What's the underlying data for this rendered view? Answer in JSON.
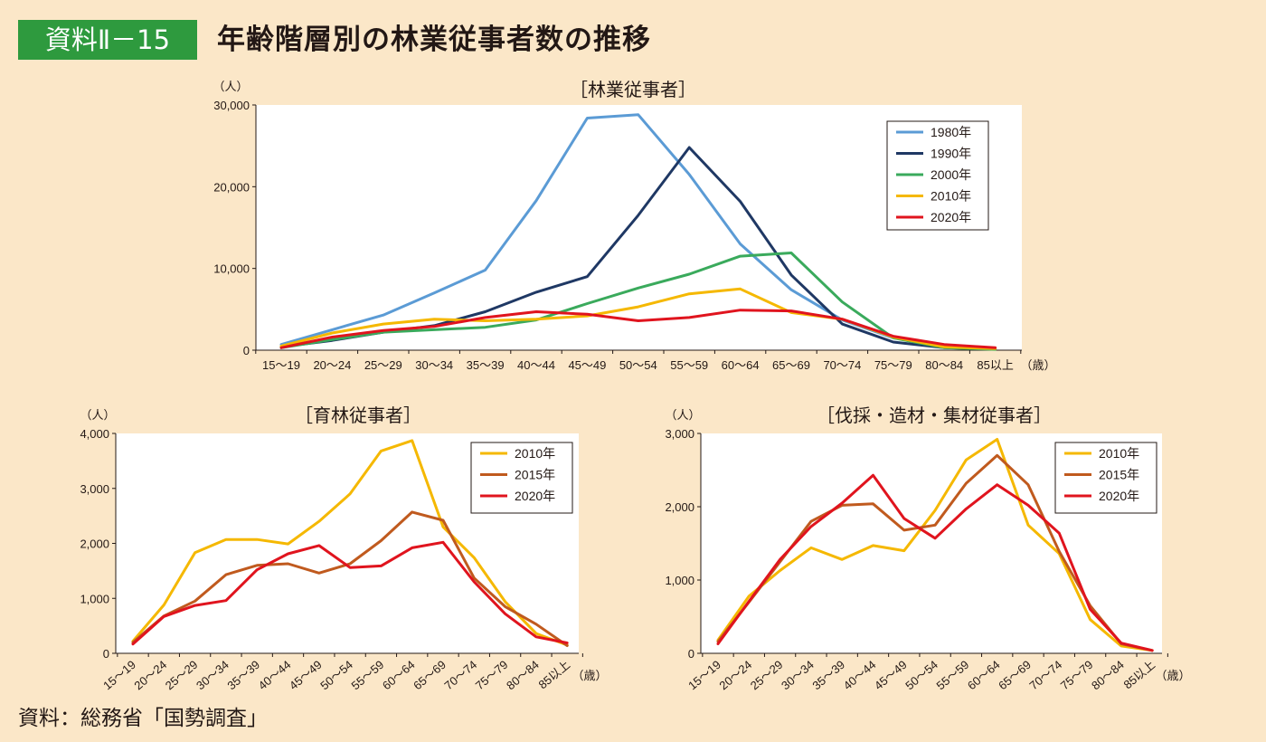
{
  "header": {
    "badge": "資料Ⅱ－15",
    "title": "年齢階層別の林業従事者数の推移"
  },
  "source": "資料：総務省「国勢調査」",
  "colors": {
    "1980年": "#5b9bd5",
    "1990年": "#1f3864",
    "2000年": "#3aaa5c",
    "2010年": "#f5b800",
    "2015年": "#c05a1e",
    "2020年": "#e0141e"
  },
  "chart_data": [
    {
      "type": "line",
      "title": "［林業従事者］",
      "ylabel": "（人）",
      "xlabel_suffix": "（歳）",
      "categories": [
        "15～19",
        "20～24",
        "25～29",
        "30～34",
        "35～39",
        "40～44",
        "45～49",
        "50～54",
        "55～59",
        "60～64",
        "65～69",
        "70～74",
        "75～79",
        "80～84",
        "85以上"
      ],
      "ylim": [
        0,
        30000
      ],
      "yticks": [
        0,
        10000,
        20000,
        30000
      ],
      "ytick_labels": [
        "0",
        "10,000",
        "20,000",
        "30,000"
      ],
      "grid": false,
      "legend_position": "top-right",
      "series": [
        {
          "name": "1980年",
          "values": [
            700,
            2500,
            4300,
            7000,
            9800,
            18300,
            28400,
            28800,
            21500,
            13000,
            7400,
            3700,
            1500,
            500,
            200
          ]
        },
        {
          "name": "1990年",
          "values": [
            400,
            1200,
            2200,
            3000,
            4700,
            7100,
            9000,
            16500,
            24800,
            18200,
            9200,
            3200,
            1000,
            300,
            150
          ]
        },
        {
          "name": "2000年",
          "values": [
            300,
            1300,
            2200,
            2500,
            2800,
            3700,
            5700,
            7600,
            9300,
            11500,
            11900,
            5900,
            1500,
            300,
            100
          ]
        },
        {
          "name": "2010年",
          "values": [
            500,
            2100,
            3200,
            3800,
            3600,
            3800,
            4200,
            5300,
            6900,
            7500,
            4600,
            3800,
            1600,
            400,
            200
          ]
        },
        {
          "name": "2020年",
          "values": [
            300,
            1600,
            2400,
            2900,
            4000,
            4700,
            4400,
            3600,
            4000,
            4900,
            4800,
            3800,
            1700,
            700,
            300
          ]
        }
      ]
    },
    {
      "type": "line",
      "title": "［育林従事者］",
      "ylabel": "（人）",
      "xlabel_suffix": "（歳）",
      "categories": [
        "15～19",
        "20～24",
        "25～29",
        "30～34",
        "35～39",
        "40～44",
        "45～49",
        "50～54",
        "55～59",
        "60～64",
        "65～69",
        "70～74",
        "75～79",
        "80～84",
        "85以上"
      ],
      "ylim": [
        0,
        4000
      ],
      "yticks": [
        0,
        1000,
        2000,
        3000,
        4000
      ],
      "ytick_labels": [
        "0",
        "1,000",
        "2,000",
        "3,000",
        "4,000"
      ],
      "grid": false,
      "legend_position": "top-right",
      "series": [
        {
          "name": "2010年",
          "values": [
            220,
            880,
            1830,
            2070,
            2070,
            1990,
            2400,
            2900,
            3680,
            3870,
            2300,
            1740,
            940,
            360,
            150
          ]
        },
        {
          "name": "2015年",
          "values": [
            200,
            680,
            950,
            1430,
            1600,
            1630,
            1460,
            1630,
            2050,
            2570,
            2420,
            1370,
            850,
            530,
            140
          ]
        },
        {
          "name": "2020年",
          "values": [
            170,
            670,
            870,
            960,
            1520,
            1810,
            1960,
            1560,
            1590,
            1920,
            2020,
            1300,
            720,
            300,
            190
          ]
        }
      ]
    },
    {
      "type": "line",
      "title": "［伐採・造材・集材従事者］",
      "ylabel": "（人）",
      "xlabel_suffix": "（歳）",
      "categories": [
        "15～19",
        "20～24",
        "25～29",
        "30～34",
        "35～39",
        "40～44",
        "45～49",
        "50～54",
        "55～59",
        "60～64",
        "65～69",
        "70～74",
        "75～79",
        "80～84",
        "85以上"
      ],
      "ylim": [
        0,
        3000
      ],
      "yticks": [
        0,
        1000,
        2000,
        3000
      ],
      "ytick_labels": [
        "0",
        "1,000",
        "2,000",
        "3,000"
      ],
      "grid": false,
      "legend_position": "top-right",
      "series": [
        {
          "name": "2010年",
          "values": [
            180,
            780,
            1130,
            1440,
            1280,
            1470,
            1400,
            1950,
            2640,
            2920,
            1750,
            1360,
            460,
            100,
            40
          ]
        },
        {
          "name": "2015年",
          "values": [
            160,
            700,
            1250,
            1800,
            2020,
            2040,
            1680,
            1750,
            2320,
            2700,
            2300,
            1390,
            650,
            130,
            40
          ]
        },
        {
          "name": "2020年",
          "values": [
            130,
            710,
            1280,
            1730,
            2050,
            2430,
            1840,
            1570,
            1970,
            2300,
            2020,
            1640,
            600,
            140,
            40
          ]
        }
      ]
    }
  ]
}
